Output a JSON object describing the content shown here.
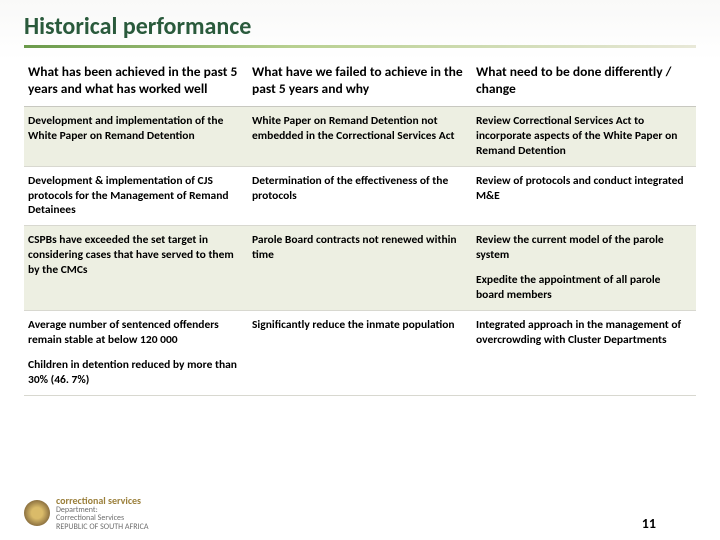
{
  "title": "Historical performance",
  "headers": {
    "col1": "What has been achieved in the past 5 years and what has worked well",
    "col2": "What have we failed to achieve in the past 5 years and why",
    "col3": "What need to be done differently / change"
  },
  "rows": [
    {
      "c1": "Development  and implementation of the White Paper on Remand Detention",
      "c2": "White Paper on Remand Detention not embedded in the Correctional Services Act",
      "c3": "Review Correctional Services Act to incorporate aspects of the White Paper on Remand Detention"
    },
    {
      "c1": "Development & implementation of CJS protocols for the Management of Remand Detainees",
      "c2": "Determination of the effectiveness of the protocols",
      "c3": "Review of protocols and conduct integrated M&E"
    },
    {
      "c1": "CSPBs have exceeded the set target  in considering cases that have served to them by the CMCs",
      "c2": "Parole Board contracts not renewed within time",
      "c3a": "Review the current model of the parole system",
      "c3b": "Expedite the appointment of all parole board members"
    },
    {
      "c1a": "Average number of sentenced offenders remain stable at below 120 000",
      "c1b": "Children in detention reduced by more than 30% (46. 7%)",
      "c2": "Significantly reduce the inmate population",
      "c3": "Integrated approach in the management of overcrowding with Cluster Departments"
    }
  ],
  "footer": {
    "brand": "correctional services",
    "dept1": "Department:",
    "dept2": "Correctional Services",
    "dept3": "REPUBLIC OF SOUTH AFRICA"
  },
  "page_number": "11"
}
